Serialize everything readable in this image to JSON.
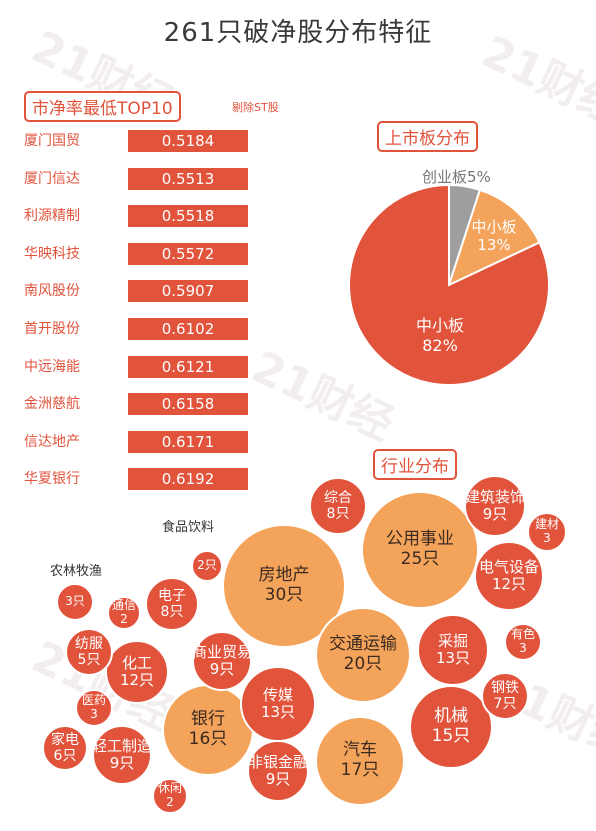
{
  "title": "261只破净股分布特征",
  "watermark": "21财经",
  "top10": {
    "title": "市净率最低TOP10",
    "note": "剔除ST股",
    "items": [
      {
        "name": "厦门国贸",
        "value": "0.5184"
      },
      {
        "name": "厦门信达",
        "value": "0.5513"
      },
      {
        "name": "利源精制",
        "value": "0.5518"
      },
      {
        "name": "华映科技",
        "value": "0.5572"
      },
      {
        "name": "南风股份",
        "value": "0.5907"
      },
      {
        "name": "首开股份",
        "value": "0.6102"
      },
      {
        "name": "中远海能",
        "value": "0.6121"
      },
      {
        "name": "金洲慈航",
        "value": "0.6158"
      },
      {
        "name": "信达地产",
        "value": "0.6171"
      },
      {
        "name": "华夏银行",
        "value": "0.6192"
      }
    ]
  },
  "board": {
    "title": "上市板分布",
    "chart_data": {
      "type": "pie",
      "slices": [
        {
          "label": "创业板",
          "value": 5,
          "text": "5%",
          "color": "#9e9e9e"
        },
        {
          "label": "中小板",
          "value": 13,
          "text": "13%",
          "color": "#f4a35a"
        },
        {
          "label": "中小板",
          "value": 82,
          "text": "82%",
          "color": "#e2533c"
        }
      ]
    }
  },
  "industry": {
    "title": "行业分布",
    "colors": {
      "red": "#e2533c",
      "orange": "#f4a35a"
    },
    "chart_data": {
      "type": "bubble",
      "items": [
        {
          "name": "房地产",
          "count": "30只",
          "value": 30,
          "color": "orange"
        },
        {
          "name": "公用事业",
          "count": "25只",
          "value": 25,
          "color": "orange"
        },
        {
          "name": "交通运输",
          "count": "20只",
          "value": 20,
          "color": "orange"
        },
        {
          "name": "汽车",
          "count": "17只",
          "value": 17,
          "color": "orange"
        },
        {
          "name": "银行",
          "count": "16只",
          "value": 16,
          "color": "orange"
        },
        {
          "name": "机械",
          "count": "15只",
          "value": 15,
          "color": "red"
        },
        {
          "name": "采掘",
          "count": "13只",
          "value": 13,
          "color": "red"
        },
        {
          "name": "传媒",
          "count": "13只",
          "value": 13,
          "color": "red"
        },
        {
          "name": "化工",
          "count": "12只",
          "value": 12,
          "color": "red"
        },
        {
          "name": "电气设备",
          "count": "12只",
          "value": 12,
          "color": "red"
        },
        {
          "name": "商业贸易",
          "count": "9只",
          "value": 9,
          "color": "red"
        },
        {
          "name": "轻工制造",
          "count": "9只",
          "value": 9,
          "color": "red"
        },
        {
          "name": "非银金融",
          "count": "9只",
          "value": 9,
          "color": "red"
        },
        {
          "name": "建筑装饰",
          "count": "9只",
          "value": 9,
          "color": "red"
        },
        {
          "name": "综合",
          "count": "8只",
          "value": 8,
          "color": "red"
        },
        {
          "name": "电子",
          "count": "8只",
          "value": 8,
          "color": "red"
        },
        {
          "name": "钢铁",
          "count": "7只",
          "value": 7,
          "color": "red"
        },
        {
          "name": "家电",
          "count": "6只",
          "value": 6,
          "color": "red"
        },
        {
          "name": "纺服",
          "count": "5只",
          "value": 5,
          "color": "red"
        },
        {
          "name": "",
          "count": "3只",
          "value": 3,
          "color": "red"
        },
        {
          "name": "医药",
          "count": "3",
          "value": 3,
          "color": "red"
        },
        {
          "name": "有色",
          "count": "3",
          "value": 3,
          "color": "red"
        },
        {
          "name": "建材",
          "count": "3",
          "value": 3,
          "color": "red"
        },
        {
          "name": "",
          "count": "2只",
          "value": 2,
          "color": "red"
        },
        {
          "name": "通信",
          "count": "2",
          "value": 2,
          "color": "red"
        },
        {
          "name": "休闲",
          "count": "2",
          "value": 2,
          "color": "red"
        }
      ],
      "external_labels": [
        "食品饮料",
        "农林牧渔"
      ]
    }
  }
}
